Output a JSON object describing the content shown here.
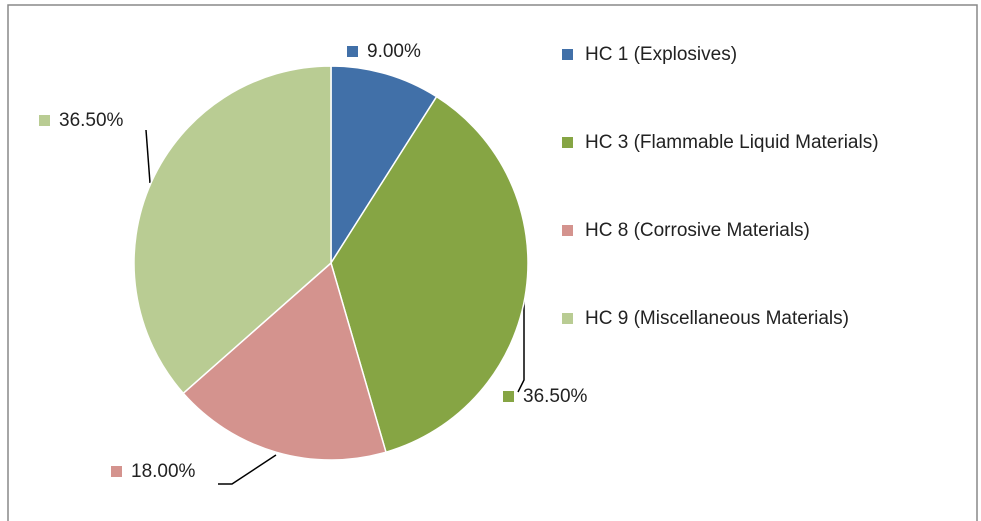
{
  "chart_data": {
    "type": "pie",
    "categories": [
      "HC 1 (Explosives)",
      "HC 3 (Flammable Liquid Materials)",
      "HC 8 (Corrosive Materials)",
      "HC 9 (Miscellaneous Materials)"
    ],
    "values": [
      9,
      36.5,
      18,
      36.5
    ],
    "value_labels": [
      "9.00%",
      "36.50%",
      "18.00%",
      "36.50%"
    ],
    "colors": [
      "#4170a8",
      "#86a544",
      "#d4938e",
      "#b9cc93"
    ],
    "legend": "right"
  }
}
